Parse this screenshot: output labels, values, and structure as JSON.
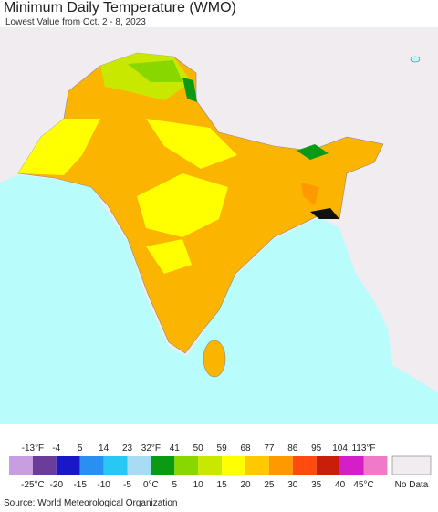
{
  "header": {
    "title": "Minimum Daily Temperature (WMO)",
    "subtitle": "Lowest Value from Oct. 2 - 8, 2023"
  },
  "legend": {
    "fahrenheit_labels": [
      "-13°F",
      "-4",
      "5",
      "14",
      "23",
      "32°F",
      "41",
      "50",
      "59",
      "68",
      "77",
      "86",
      "95",
      "104",
      "113°F"
    ],
    "celsius_labels": [
      "-25°C",
      "-20",
      "-15",
      "-10",
      "-5",
      "0°C",
      "5",
      "10",
      "15",
      "20",
      "25",
      "30",
      "35",
      "40",
      "45°C"
    ],
    "colors": [
      "#c79ee0",
      "#6a3d9a",
      "#1818c8",
      "#2a8ff0",
      "#28c8f5",
      "#a8dcf5",
      "#0a9a14",
      "#88d800",
      "#c8e800",
      "#ffff00",
      "#ffc800",
      "#ff9900",
      "#ff4a10",
      "#c81e0a",
      "#d41ec8",
      "#f07ac8"
    ],
    "no_data_label": "No Data"
  },
  "footer": {
    "source": "Source: World Meteorological Organization"
  }
}
